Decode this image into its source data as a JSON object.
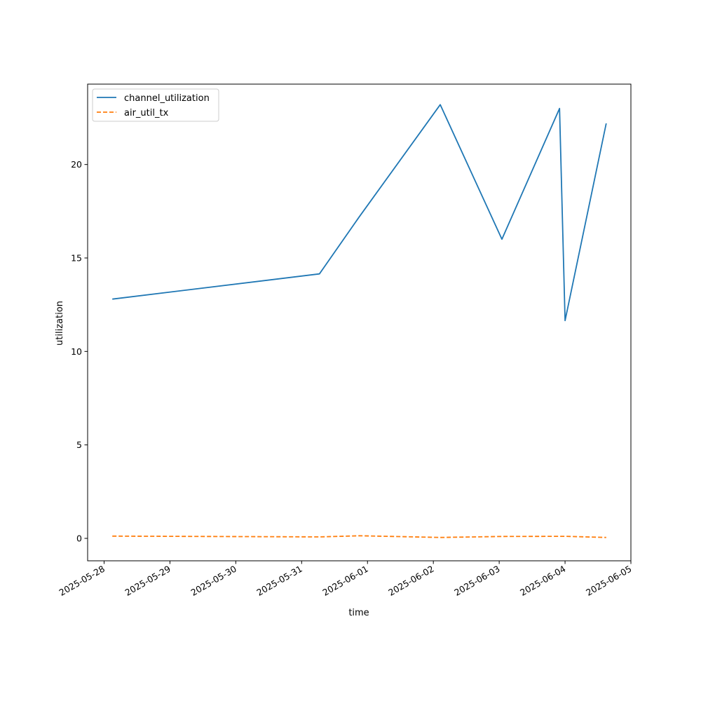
{
  "chart_data": {
    "type": "line",
    "xlabel": "time",
    "ylabel": "utilization",
    "x_type": "date",
    "xlim": [
      "2025-05-27T18:00",
      "2025-06-05T00:00"
    ],
    "ylim": [
      -1.2,
      24.3
    ],
    "x_ticks": [
      "2025-05-28",
      "2025-05-29",
      "2025-05-30",
      "2025-05-31",
      "2025-06-01",
      "2025-06-02",
      "2025-06-03",
      "2025-06-04",
      "2025-06-05"
    ],
    "y_ticks": [
      0,
      5,
      10,
      15,
      20
    ],
    "grid": false,
    "legend_position": "top-left",
    "series": [
      {
        "name": "channel_utilization",
        "color": "#1f77b4",
        "dash": "solid",
        "points": [
          {
            "x": "2025-05-28T03:00",
            "y": 12.8
          },
          {
            "x": "2025-05-31T06:30",
            "y": 14.15
          },
          {
            "x": "2025-05-31T21:00",
            "y": 17.2
          },
          {
            "x": "2025-06-02T02:30",
            "y": 23.2
          },
          {
            "x": "2025-06-03T01:00",
            "y": 16.0
          },
          {
            "x": "2025-06-03T22:00",
            "y": 23.0
          },
          {
            "x": "2025-06-04T00:00",
            "y": 11.65
          },
          {
            "x": "2025-06-04T15:00",
            "y": 22.2
          }
        ]
      },
      {
        "name": "air_util_tx",
        "color": "#ff7f0e",
        "dash": "dashed",
        "points": [
          {
            "x": "2025-05-28T03:00",
            "y": 0.12
          },
          {
            "x": "2025-05-31T06:30",
            "y": 0.08
          },
          {
            "x": "2025-05-31T21:00",
            "y": 0.14
          },
          {
            "x": "2025-06-02T02:30",
            "y": 0.05
          },
          {
            "x": "2025-06-03T01:00",
            "y": 0.1
          },
          {
            "x": "2025-06-03T22:00",
            "y": 0.11
          },
          {
            "x": "2025-06-04T00:00",
            "y": 0.11
          },
          {
            "x": "2025-06-04T15:00",
            "y": 0.05
          }
        ]
      }
    ]
  }
}
